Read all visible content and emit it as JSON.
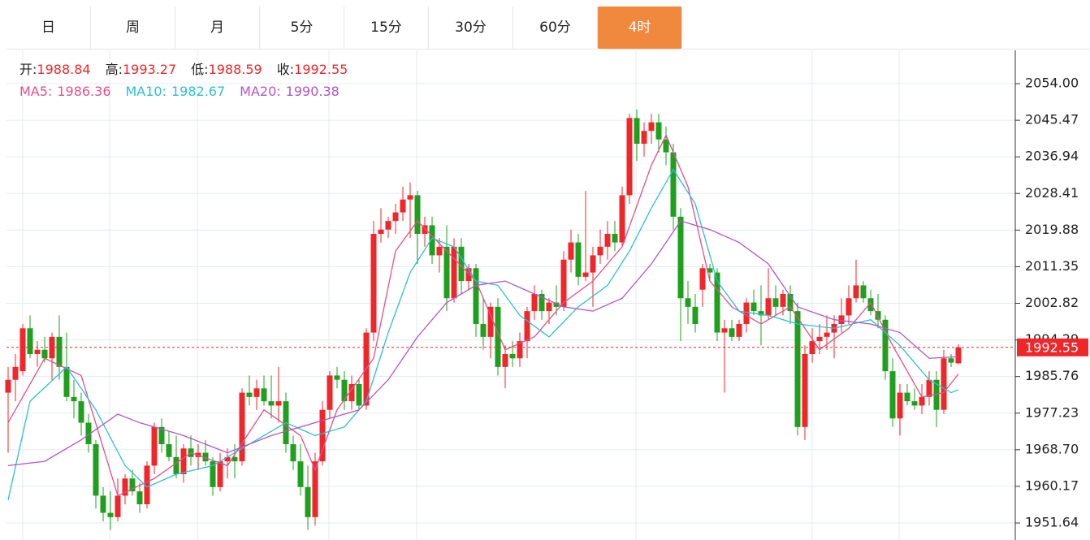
{
  "tabs": {
    "items": [
      "日",
      "周",
      "月",
      "5分",
      "15分",
      "30分",
      "60分",
      "4时"
    ],
    "active": 7
  },
  "chart_data": {
    "type": "candlestick",
    "info_labels": [
      "开:",
      "高:",
      "低:",
      "收:"
    ],
    "up_color": "#f0262a",
    "down_color": "#1ea01e",
    "ylim": [
      1947.67,
      2061.76
    ],
    "yticks": [
      {
        "value": 2054,
        "label": "2054.00"
      },
      2045.47,
      2036.94,
      2028.41,
      2019.88,
      2011.35,
      2002.82,
      1994.29,
      1985.76,
      1977.23,
      {
        "value": 1968.7,
        "label": "1968.70"
      },
      1960.17,
      1951.64
    ],
    "grid": true,
    "ohlc": [
      [
        1982,
        1988,
        1968,
        1985
      ],
      [
        1985,
        1991,
        1980,
        1988
      ],
      [
        1987,
        1998,
        1986,
        1997
      ],
      [
        1997,
        2000,
        1990,
        1991
      ],
      [
        1991,
        1994,
        1988,
        1992
      ],
      [
        1992,
        1995,
        1989,
        1990
      ],
      [
        1990,
        1996,
        1985,
        1995
      ],
      [
        1995,
        2000,
        1985,
        1988
      ],
      [
        1988,
        1996,
        1980,
        1981
      ],
      [
        1981,
        1985,
        1976,
        1980
      ],
      [
        1980,
        1982,
        1972,
        1975
      ],
      [
        1975,
        1977,
        1968,
        1970
      ],
      [
        1970,
        1971,
        1955,
        1958
      ],
      [
        1958,
        1960,
        1952,
        1954
      ],
      [
        1954,
        1959,
        1950,
        1953
      ],
      [
        1953,
        1962,
        1952,
        1958
      ],
      [
        1958,
        1963,
        1956,
        1962
      ],
      [
        1962,
        1964,
        1958,
        1959
      ],
      [
        1959,
        1961,
        1954,
        1956
      ],
      [
        1956,
        1966,
        1955,
        1965
      ],
      [
        1965,
        1975,
        1963,
        1974
      ],
      [
        1974,
        1976,
        1968,
        1970
      ],
      [
        1970,
        1973,
        1966,
        1967
      ],
      [
        1967,
        1972,
        1962,
        1963
      ],
      [
        1963,
        1970,
        1961,
        1969
      ],
      [
        1969,
        1972,
        1965,
        1967
      ],
      [
        1967,
        1970,
        1964,
        1968
      ],
      [
        1968,
        1971,
        1965,
        1966
      ],
      [
        1966,
        1967,
        1958,
        1960
      ],
      [
        1960,
        1968,
        1959,
        1966
      ],
      [
        1966,
        1969,
        1962,
        1967
      ],
      [
        1967,
        1970,
        1962,
        1966
      ],
      [
        1966,
        1983,
        1965,
        1982
      ],
      [
        1982,
        1986,
        1979,
        1981
      ],
      [
        1981,
        1985,
        1978,
        1983
      ],
      [
        1983,
        1986,
        1979,
        1980
      ],
      [
        1980,
        1986,
        1976,
        1979
      ],
      [
        1979,
        1988,
        1975,
        1980
      ],
      [
        1980,
        1982,
        1968,
        1970
      ],
      [
        1970,
        1972,
        1964,
        1966
      ],
      [
        1966,
        1970,
        1958,
        1960
      ],
      [
        1960,
        1965,
        1950,
        1953
      ],
      [
        1953,
        1968,
        1951,
        1966
      ],
      [
        1966,
        1980,
        1965,
        1978
      ],
      [
        1978,
        1987,
        1976,
        1986
      ],
      [
        1986,
        1988,
        1983,
        1985
      ],
      [
        1985,
        1987,
        1978,
        1980
      ],
      [
        1980,
        1986,
        1978,
        1984
      ],
      [
        1984,
        1985,
        1978,
        1979
      ],
      [
        1979,
        1997,
        1978,
        1996
      ],
      [
        1996,
        2022,
        1994,
        2019
      ],
      [
        2019,
        2025,
        2017,
        2020
      ],
      [
        2020,
        2023,
        2018,
        2022
      ],
      [
        2022,
        2026,
        2019,
        2024
      ],
      [
        2024,
        2030,
        2022,
        2027
      ],
      [
        2027,
        2031,
        2018,
        2028
      ],
      [
        2028,
        2029,
        2012,
        2019
      ],
      [
        2019,
        2023,
        2016,
        2021
      ],
      [
        2021,
        2023,
        2012,
        2014
      ],
      [
        2014,
        2018,
        2010,
        2016
      ],
      [
        2016,
        2021,
        2001,
        2004
      ],
      [
        2004,
        2018,
        2003,
        2016
      ],
      [
        2016,
        2018,
        2005,
        2008
      ],
      [
        2008,
        2012,
        2006,
        2011
      ],
      [
        2011,
        2012,
        1995,
        1998
      ],
      [
        1998,
        2004,
        1992,
        1995
      ],
      [
        1995,
        2003,
        1990,
        2002
      ],
      [
        2002,
        2004,
        1986,
        1988
      ],
      [
        1988,
        1993,
        1983,
        1991
      ],
      [
        1991,
        1994,
        1988,
        1990
      ],
      [
        1990,
        1996,
        1988,
        1994
      ],
      [
        1994,
        2002,
        1990,
        2001
      ],
      [
        2001,
        2007,
        1999,
        2005
      ],
      [
        2005,
        2006,
        1999,
        2001
      ],
      [
        2001,
        2004,
        1998,
        2003
      ],
      [
        2003,
        2007,
        2000,
        2002
      ],
      [
        2002,
        2015,
        2001,
        2013
      ],
      [
        2013,
        2020,
        2010,
        2017
      ],
      [
        2017,
        2019,
        2007,
        2009
      ],
      [
        2009,
        2029,
        2008,
        2010
      ],
      [
        2010,
        2016,
        2002,
        2014
      ],
      [
        2014,
        2020,
        2012,
        2016
      ],
      [
        2016,
        2022,
        2013,
        2019
      ],
      [
        2019,
        2022,
        2015,
        2017
      ],
      [
        2017,
        2030,
        2016,
        2028
      ],
      [
        2028,
        2047,
        2026,
        2046
      ],
      [
        2046,
        2048,
        2036,
        2040
      ],
      [
        2040,
        2045,
        2037,
        2043
      ],
      [
        2043,
        2047,
        2040,
        2045
      ],
      [
        2045,
        2047,
        2038,
        2041
      ],
      [
        2041,
        2044,
        2035,
        2038
      ],
      [
        2038,
        2040,
        2020,
        2023
      ],
      [
        2023,
        2025,
        1994,
        2004
      ],
      [
        2004,
        2008,
        1998,
        2002
      ],
      [
        2002,
        2005,
        1996,
        1998
      ],
      [
        2006,
        2012,
        2002,
        2011
      ],
      [
        2011,
        2012,
        2008,
        2010
      ],
      [
        2010,
        2011,
        1994,
        1996
      ],
      [
        1996,
        1999,
        1982,
        1997
      ],
      [
        1997,
        1999,
        1994,
        1995
      ],
      [
        1995,
        1999,
        1994,
        1998
      ],
      [
        1998,
        2004,
        1996,
        2003
      ],
      [
        2003,
        2006,
        2000,
        2001
      ],
      [
        2001,
        2007,
        1993,
        2000
      ],
      [
        2000,
        2011,
        1999,
        2004
      ],
      [
        2004,
        2007,
        2000,
        2002
      ],
      [
        2002,
        2006,
        2000,
        2005
      ],
      [
        2005,
        2007,
        1998,
        2001
      ],
      [
        2001,
        2003,
        1972,
        1974
      ],
      [
        1974,
        1993,
        1971,
        1991
      ],
      [
        1991,
        1997,
        1989,
        1994
      ],
      [
        1994,
        1998,
        1991,
        1995
      ],
      [
        1995,
        2000,
        1992,
        1996
      ],
      [
        1996,
        2000,
        1990,
        1998
      ],
      [
        1998,
        2004,
        1996,
        2000
      ],
      [
        2000,
        2007,
        1998,
        2004
      ],
      [
        2004,
        2013,
        2003,
        2007
      ],
      [
        2007,
        2008,
        2003,
        2004
      ],
      [
        2004,
        2006,
        2000,
        2001
      ],
      [
        2001,
        2005,
        1997,
        1999
      ],
      [
        1999,
        2000,
        1985,
        1987
      ],
      [
        1987,
        1990,
        1974,
        1976
      ],
      [
        1976,
        1984,
        1972,
        1982
      ],
      [
        1982,
        1984,
        1979,
        1980
      ],
      [
        1980,
        1983,
        1978,
        1979
      ],
      [
        1979,
        1984,
        1977,
        1981
      ],
      [
        1981,
        1987,
        1979,
        1985
      ],
      [
        1985,
        1987,
        1974,
        1978
      ],
      [
        1978,
        1992,
        1977,
        1990
      ],
      [
        1990,
        1991,
        1988,
        1989
      ],
      [
        1988.84,
        1993.27,
        1988.59,
        1992.55
      ]
    ],
    "series": [
      {
        "name": "MA5:",
        "color": "#e4508a",
        "x": [
          0,
          5,
          10,
          15,
          20,
          25,
          30,
          35,
          40,
          42,
          45,
          50,
          53,
          56,
          60,
          64,
          68,
          72,
          76,
          80,
          84,
          88,
          90,
          93,
          96,
          99,
          103,
          107,
          111,
          115,
          118,
          121,
          125,
          128,
          130
        ],
        "values": [
          1975,
          1990,
          1986,
          1958,
          1962,
          1968,
          1965,
          1978,
          1972,
          1964,
          1978,
          1990,
          2015,
          2022,
          2015,
          2008,
          1992,
          1995,
          2003,
          2008,
          2016,
          2035,
          2042,
          2030,
          2008,
          2002,
          1998,
          2002,
          1992,
          1997,
          2003,
          1993,
          1981,
          1982,
          1986.36
        ]
      },
      {
        "name": "MA10:",
        "color": "#2cc0d0",
        "x": [
          0,
          3,
          8,
          12,
          16,
          19,
          23,
          28,
          33,
          38,
          42,
          46,
          49,
          52,
          55,
          58,
          61,
          64,
          67,
          70,
          74,
          78,
          82,
          85,
          88,
          91,
          94,
          97,
          100,
          104,
          108,
          113,
          118,
          122,
          126,
          129,
          130
        ],
        "values": [
          1957,
          1980,
          1988,
          1978,
          1965,
          1960,
          1963,
          1965,
          1970,
          1975,
          1972,
          1974,
          1980,
          1996,
          2010,
          2018,
          2016,
          2008,
          2007,
          2000,
          1995,
          2002,
          2007,
          2015,
          2025,
          2034,
          2026,
          2008,
          2001,
          2000,
          1998,
          1997,
          1999,
          1993,
          1985,
          1982,
          1982.67
        ]
      },
      {
        "name": "MA20:",
        "color": "#b455c4",
        "x": [
          0,
          5,
          10,
          15,
          18,
          24,
          30,
          36,
          42,
          48,
          52,
          56,
          60,
          64,
          68,
          72,
          76,
          80,
          84,
          88,
          92,
          96,
          100,
          104,
          108,
          113,
          118,
          122,
          126,
          130
        ],
        "values": [
          1965,
          1966,
          1971,
          1977,
          1975,
          1972,
          1968,
          1972,
          1975,
          1978,
          1985,
          1995,
          2003,
          2007,
          2008,
          2005,
          2002,
          2001,
          2004,
          2012,
          2022,
          2020,
          2017,
          2012,
          2002,
          1999,
          1998,
          1996,
          1990,
          1990.38
        ]
      }
    ]
  }
}
